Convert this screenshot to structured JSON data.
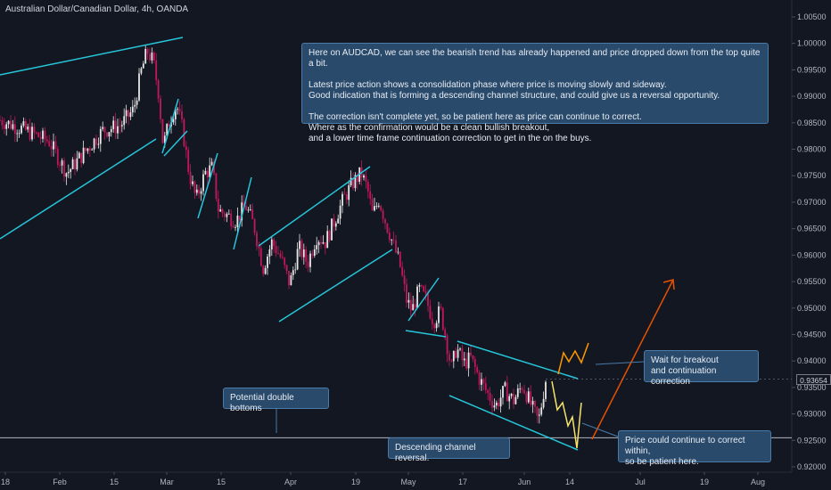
{
  "header": {
    "title": "Australian Dollar/Canadian Dollar, 4h, OANDA"
  },
  "colors": {
    "background": "#131722",
    "up_candle": "#e7e7e7",
    "down_candle": "#c2185b",
    "trendline": "#26c6da",
    "projection_up": "#e65100",
    "projection_orange_wave": "#ff9800",
    "projection_yellow_wave": "#f5e26b",
    "support_line": "#b2b5be",
    "note_fill": "#2a4a6b"
  },
  "chart_data": {
    "type": "candlestick",
    "symbol": "AUDCAD",
    "timeframe": "4h",
    "x_tick_labels": [
      "18",
      "Feb",
      "15",
      "Mar",
      "15",
      "Apr",
      "19",
      "May",
      "17",
      "Jun",
      "14",
      "Jul",
      "19",
      "Aug"
    ],
    "y_tick_labels": [
      "1.00500",
      "1.00000",
      "0.99500",
      "0.99000",
      "0.98500",
      "0.98000",
      "0.97500",
      "0.97000",
      "0.96500",
      "0.96000",
      "0.95500",
      "0.95000",
      "0.94500",
      "0.94000",
      "0.93500",
      "0.93000",
      "0.92500",
      "0.92000"
    ],
    "ylim": [
      0.9195,
      1.0065
    ],
    "current_price": "0.93654",
    "support_level": 0.9255,
    "price_path": [
      [
        0,
        0.9855
      ],
      [
        30,
        0.9835
      ],
      [
        55,
        0.9815
      ],
      [
        75,
        0.9755
      ],
      [
        95,
        0.9795
      ],
      [
        115,
        0.9835
      ],
      [
        135,
        0.9845
      ],
      [
        150,
        0.9875
      ],
      [
        158,
        0.9945
      ],
      [
        165,
        0.9985
      ],
      [
        172,
        0.9965
      ],
      [
        178,
        0.9905
      ],
      [
        183,
        0.9805
      ],
      [
        190,
        0.9855
      ],
      [
        198,
        0.9885
      ],
      [
        205,
        0.9835
      ],
      [
        212,
        0.9755
      ],
      [
        220,
        0.9705
      ],
      [
        230,
        0.9755
      ],
      [
        238,
        0.9765
      ],
      [
        245,
        0.9685
      ],
      [
        255,
        0.9675
      ],
      [
        265,
        0.9665
      ],
      [
        275,
        0.9695
      ],
      [
        285,
        0.9655
      ],
      [
        295,
        0.9575
      ],
      [
        305,
        0.9625
      ],
      [
        315,
        0.9595
      ],
      [
        325,
        0.9545
      ],
      [
        335,
        0.9615
      ],
      [
        345,
        0.9585
      ],
      [
        355,
        0.9635
      ],
      [
        365,
        0.9625
      ],
      [
        375,
        0.9665
      ],
      [
        385,
        0.9705
      ],
      [
        395,
        0.9735
      ],
      [
        405,
        0.9755
      ],
      [
        412,
        0.9725
      ],
      [
        418,
        0.9675
      ],
      [
        425,
        0.9705
      ],
      [
        432,
        0.9665
      ],
      [
        440,
        0.9625
      ],
      [
        448,
        0.9585
      ],
      [
        456,
        0.9515
      ],
      [
        462,
        0.9495
      ],
      [
        470,
        0.9535
      ],
      [
        478,
        0.9515
      ],
      [
        486,
        0.9475
      ],
      [
        494,
        0.9495
      ],
      [
        500,
        0.9445
      ],
      [
        506,
        0.9385
      ],
      [
        512,
        0.9425
      ],
      [
        520,
        0.9395
      ],
      [
        528,
        0.9405
      ],
      [
        538,
        0.9365
      ],
      [
        548,
        0.9335
      ],
      [
        556,
        0.9315
      ],
      [
        566,
        0.9345
      ],
      [
        576,
        0.9325
      ],
      [
        586,
        0.9355
      ],
      [
        596,
        0.9315
      ],
      [
        604,
        0.9285
      ],
      [
        612,
        0.9365
      ]
    ],
    "trendlines_description": "cyan channel lines drawn over the price",
    "annotations": [
      "Here on AUDCAD, we can see the bearish trend has already happened and price dropped down from the top quite a bit.",
      "Potential double bottoms",
      "Descending channel reversal.",
      "Wait for breakout and continuation correction",
      "Price could continue to correct within, so be patient here."
    ]
  },
  "notes": {
    "main": "Here on AUDCAD, we can see the bearish trend has already happened and price dropped down from the top quite a bit.\n\nLatest price action shows a consolidation phase where price is moving slowly and sideway.\nGood indication that is forming a descending channel structure, and could give us a reversal opportunity.\n\nThe correction isn't complete yet, so be patient here as price can continue to correct.\nWhere as the confirmation would be a clean bullish breakout,\nand a lower time frame continuation correction to get in the on the buys.",
    "double_bottom": "Potential double bottoms",
    "channel": "Descending channel reversal.",
    "breakout": "Wait for breakout\nand continuation correction",
    "correct": "Price could continue to correct within,\nso be patient here."
  }
}
